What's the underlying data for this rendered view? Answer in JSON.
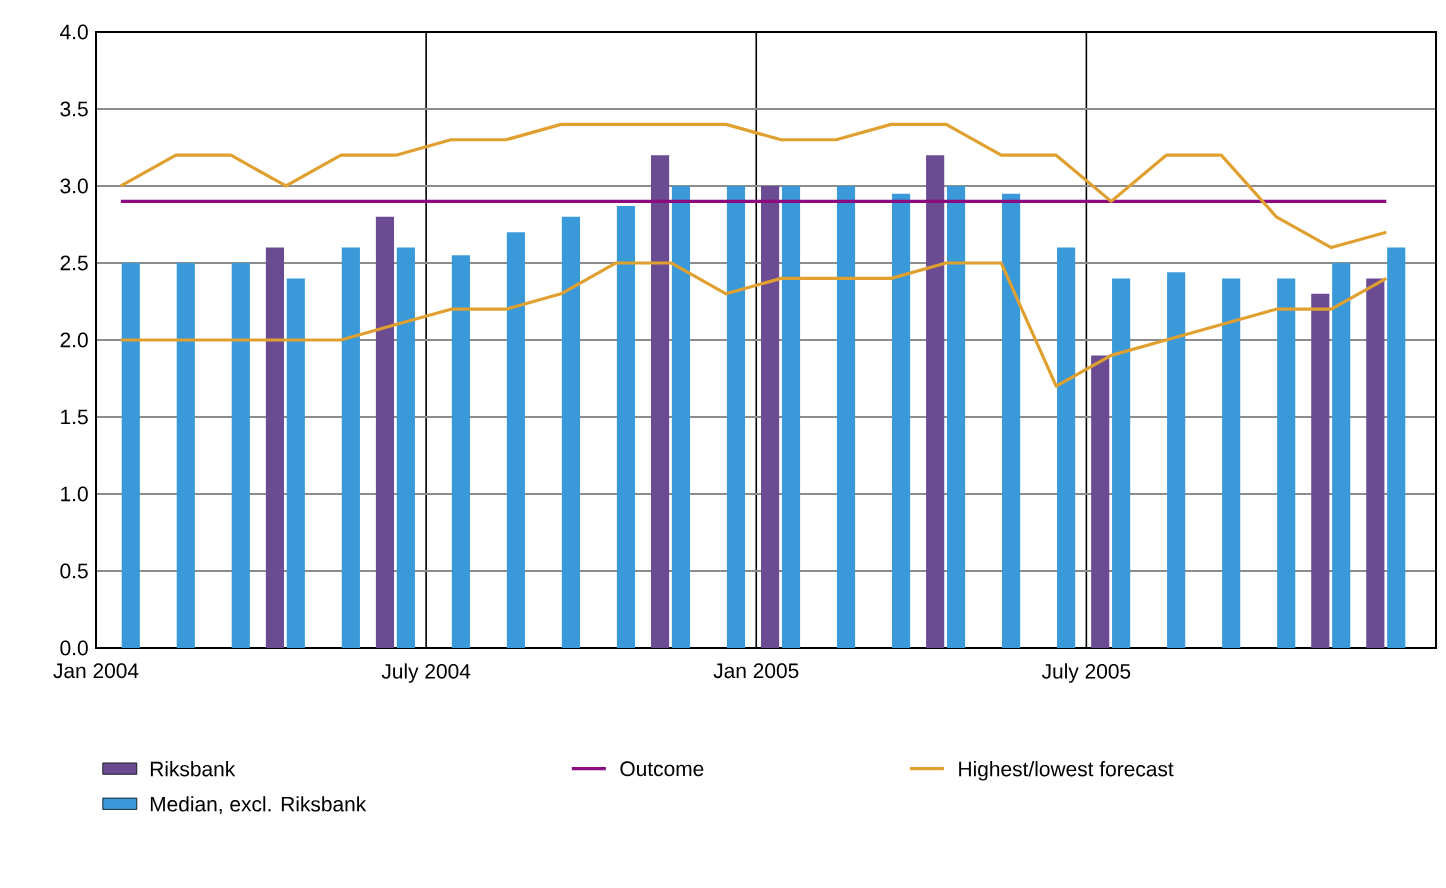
{
  "chart_data": {
    "type": "bar",
    "x": [
      "2004-01-15",
      "2004-02-15",
      "2004-03-15",
      "2004-04-15",
      "2004-05-15",
      "2004-06-15",
      "2004-07-15",
      "2004-08-15",
      "2004-09-15",
      "2004-10-15",
      "2004-11-15",
      "2004-12-15",
      "2005-01-15",
      "2005-02-15",
      "2005-03-15",
      "2005-04-15",
      "2005-05-15",
      "2005-06-15",
      "2005-07-15",
      "2005-08-15",
      "2005-09-15",
      "2005-10-15",
      "2005-11-15",
      "2005-12-15"
    ],
    "series": [
      {
        "name": "Riksbank",
        "color": "#6b4c93",
        "values": [
          null,
          null,
          null,
          2.6,
          null,
          2.8,
          null,
          null,
          null,
          null,
          3.2,
          null,
          3.0,
          null,
          null,
          3.2,
          null,
          null,
          1.9,
          null,
          null,
          null,
          2.3,
          2.4
        ]
      },
      {
        "name": "Outcome",
        "type": "line",
        "color": "#8b0a7f",
        "values": [
          2.9,
          2.9,
          2.9,
          2.9,
          2.9,
          2.9,
          2.9,
          2.9,
          2.9,
          2.9,
          2.9,
          2.9,
          2.9,
          2.9,
          2.9,
          2.9,
          2.9,
          2.9,
          2.9,
          2.9,
          2.9,
          2.9,
          2.9,
          2.9
        ]
      },
      {
        "name": "Highest/lowest forecast",
        "type": "line",
        "color": "#e0a030",
        "values": [
          3.0,
          3.2,
          3.2,
          3.0,
          3.2,
          3.2,
          3.3,
          3.3,
          3.4,
          3.4,
          3.4,
          3.4,
          3.3,
          3.3,
          3.4,
          3.4,
          3.2,
          3.2,
          2.9,
          3.2,
          3.2,
          2.8,
          2.6,
          2.7
        ]
      },
      {
        "name": "Median, excl. Riksbank",
        "color": "#3a9ad9",
        "values": [
          2.5,
          2.5,
          2.5,
          2.4,
          2.6,
          2.6,
          2.55,
          2.7,
          2.8,
          2.87,
          3.0,
          3.0,
          3.0,
          3.0,
          2.95,
          3.0,
          2.95,
          2.6,
          2.4,
          2.44,
          2.4,
          2.4,
          2.5,
          2.6
        ]
      },
      {
        "type": "line",
        "color": "#e0a030",
        "values": [
          2.0,
          2.0,
          2.0,
          2.0,
          2.0,
          2.1,
          2.2,
          2.2,
          2.3,
          2.5,
          2.5,
          2.3,
          2.4,
          2.4,
          2.4,
          2.5,
          2.5,
          1.7,
          1.9,
          2.0,
          2.1,
          2.2,
          2.2,
          2.4
        ]
      }
    ],
    "xlim": [
      "2004-01",
      "2006-01-12"
    ],
    "xticks": [
      {
        "value": "2004-01",
        "label": "Jan 2004"
      },
      {
        "value": "2004-07",
        "label": "July 2004"
      },
      {
        "value": "2005-01",
        "label": "Jan 2005"
      },
      {
        "value": "2005-07",
        "label": "July 2005"
      }
    ],
    "ylim": [
      0,
      4
    ],
    "yticks": [
      {
        "value": 0,
        "label": "0.0"
      },
      {
        "value": 0.5,
        "label": "0.5"
      },
      {
        "value": 1,
        "label": "1.0"
      },
      {
        "value": 1.5,
        "label": "1.5"
      },
      {
        "value": 2,
        "label": "2.0"
      },
      {
        "value": 2.5,
        "label": "2.5"
      },
      {
        "value": 3,
        "label": "3.0"
      },
      {
        "value": 3.5,
        "label": "3.5"
      },
      {
        "value": 4,
        "label": "4.0"
      }
    ],
    "grid": true,
    "legend": "bottom"
  }
}
